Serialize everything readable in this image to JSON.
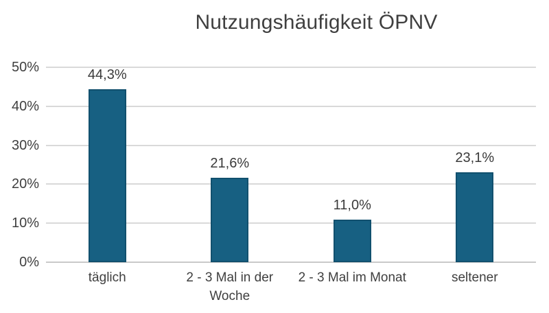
{
  "chart_data": {
    "type": "bar",
    "title": "Nutzungshäufigkeit ÖPNV",
    "categories": [
      "täglich",
      "2 - 3 Mal in der Woche",
      "2 - 3 Mal im Monat",
      "seltener"
    ],
    "values": [
      44.3,
      21.6,
      11.0,
      23.1
    ],
    "value_labels": [
      "44,3%",
      "21,6%",
      "11,0%",
      "23,1%"
    ],
    "y_ticks": [
      "0%",
      "10%",
      "20%",
      "30%",
      "40%",
      "50%"
    ],
    "xlabel": "",
    "ylabel": "",
    "ylim": [
      0,
      50
    ],
    "grid": true,
    "legend_position": "none",
    "colors": {
      "bar_fill": "#176082",
      "bar_border": "#11506e",
      "gridline": "#d9d9d9",
      "text": "#3f3f3f",
      "background": "#ffffff"
    }
  }
}
